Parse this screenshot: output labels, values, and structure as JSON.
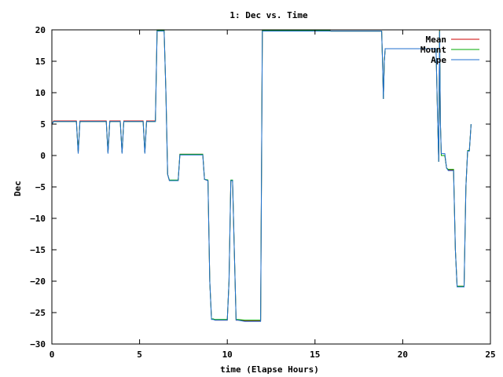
{
  "chart_data": {
    "type": "line",
    "title": "1: Dec vs. Time",
    "xlabel": "time (Elapse Hours)",
    "ylabel": "Dec",
    "xlim": [
      0,
      25
    ],
    "ylim": [
      -30,
      20
    ],
    "xticks": [
      0,
      5,
      10,
      15,
      20,
      25
    ],
    "yticks": [
      -30,
      -25,
      -20,
      -15,
      -10,
      -5,
      0,
      5,
      10,
      15,
      20
    ],
    "grid": false,
    "legend_position": "top-right",
    "series": [
      {
        "name": "Mean",
        "color": "#cc0000",
        "x": [
          0,
          0.1,
          0.2,
          1.4,
          1.5,
          1.6,
          3.1,
          3.2,
          3.3,
          3.9,
          4.0,
          4.1,
          5.2,
          5.3,
          5.4,
          5.9,
          6.0,
          6.4,
          6.5,
          6.6,
          6.7,
          6.8,
          7.2,
          7.3,
          8.6,
          8.7,
          8.9,
          9.0,
          9.1,
          9.2,
          9.3,
          10.0,
          10.1,
          10.2,
          10.3,
          10.4,
          10.5,
          10.6,
          11.0,
          11.1,
          11.9,
          12.0,
          15.8,
          15.9,
          18.8,
          18.85,
          18.9,
          18.95,
          19.0,
          19.1,
          19.2,
          21.9,
          22.0,
          22.05,
          22.1,
          22.15,
          22.2,
          22.4,
          22.5,
          22.6,
          22.9,
          23.0,
          23.1,
          23.2,
          23.4,
          23.5,
          23.6,
          23.7,
          23.8,
          23.9
        ],
        "y": [
          5.0,
          5.5,
          5.5,
          5.5,
          0.5,
          5.5,
          5.5,
          0.5,
          5.5,
          5.5,
          0.5,
          5.5,
          5.5,
          0.5,
          5.5,
          5.5,
          20.0,
          20.0,
          10.0,
          -3.0,
          -4.0,
          -4.0,
          -4.0,
          0.2,
          0.2,
          -3.8,
          -4.0,
          -20.0,
          -26.0,
          -26.0,
          -26.2,
          -26.2,
          -20.0,
          -4.0,
          -4.0,
          -15.0,
          -26.2,
          -26.2,
          -26.3,
          -26.3,
          -26.3,
          20.0,
          20.0,
          19.8,
          19.8,
          15.0,
          9.0,
          15.0,
          17.0,
          17.0,
          17.0,
          17.0,
          5.0,
          -1.0,
          20.0,
          5.0,
          0.0,
          0.0,
          -2.0,
          -2.3,
          -2.3,
          -15.0,
          -20.8,
          -20.8,
          -20.8,
          -20.8,
          -5.0,
          0.8,
          0.8,
          5.0
        ]
      },
      {
        "name": "Mount",
        "color": "#00aa00",
        "x": [
          0,
          0.1,
          0.2,
          1.4,
          1.5,
          1.6,
          3.1,
          3.2,
          3.3,
          3.9,
          4.0,
          4.1,
          5.2,
          5.3,
          5.4,
          5.9,
          6.0,
          6.4,
          6.5,
          6.6,
          6.7,
          6.8,
          7.2,
          7.3,
          8.6,
          8.7,
          8.9,
          9.0,
          9.1,
          9.2,
          9.3,
          10.0,
          10.1,
          10.2,
          10.3,
          10.4,
          10.5,
          10.6,
          11.0,
          11.1,
          11.9,
          12.0,
          15.8,
          15.9,
          18.8,
          18.85,
          18.9,
          18.95,
          19.0,
          19.1,
          19.2,
          21.9,
          22.0,
          22.05,
          22.1,
          22.15,
          22.2,
          22.4,
          22.5,
          22.6,
          22.9,
          23.0,
          23.1,
          23.2,
          23.4,
          23.5,
          23.6,
          23.7,
          23.8,
          23.9
        ],
        "y": [
          5.0,
          5.4,
          5.4,
          5.4,
          0.5,
          5.4,
          5.4,
          0.5,
          5.4,
          5.4,
          0.5,
          5.4,
          5.4,
          0.5,
          5.4,
          5.4,
          19.9,
          19.9,
          10.0,
          -3.0,
          -3.9,
          -3.9,
          -3.9,
          0.2,
          0.2,
          -3.8,
          -3.9,
          -20.0,
          -26.0,
          -26.0,
          -26.1,
          -26.1,
          -20.0,
          -3.9,
          -3.9,
          -15.0,
          -26.1,
          -26.1,
          -26.2,
          -26.2,
          -26.2,
          19.9,
          19.9,
          19.8,
          19.8,
          15.0,
          9.0,
          15.0,
          17.0,
          17.0,
          17.0,
          17.0,
          5.0,
          -1.0,
          19.9,
          5.0,
          0.0,
          0.0,
          -2.0,
          -2.2,
          -2.2,
          -15.0,
          -20.8,
          -20.8,
          -20.8,
          -20.8,
          -5.0,
          0.8,
          0.8,
          5.0
        ]
      },
      {
        "name": "Ape",
        "color": "#1f6fcf",
        "x": [
          0,
          0.1,
          0.2,
          1.4,
          1.5,
          1.6,
          3.1,
          3.2,
          3.3,
          3.9,
          4.0,
          4.1,
          5.2,
          5.3,
          5.4,
          5.9,
          6.0,
          6.4,
          6.5,
          6.6,
          6.7,
          6.8,
          7.2,
          7.3,
          8.6,
          8.7,
          8.9,
          9.0,
          9.1,
          9.2,
          9.3,
          10.0,
          10.1,
          10.2,
          10.3,
          10.4,
          10.5,
          10.6,
          11.0,
          11.1,
          11.9,
          12.0,
          15.8,
          15.9,
          18.8,
          18.85,
          18.9,
          18.95,
          19.0,
          19.1,
          19.2,
          21.9,
          22.0,
          22.05,
          22.1,
          22.15,
          22.2,
          22.4,
          22.5,
          22.6,
          22.9,
          23.0,
          23.1,
          23.2,
          23.4,
          23.5,
          23.6,
          23.7,
          23.8,
          23.9
        ],
        "y": [
          5.0,
          5.4,
          5.4,
          5.4,
          0.3,
          5.4,
          5.4,
          0.3,
          5.4,
          5.4,
          0.3,
          5.4,
          5.4,
          0.3,
          5.4,
          5.4,
          19.8,
          19.8,
          10.0,
          -3.0,
          -4.0,
          -4.0,
          -4.0,
          0.1,
          0.1,
          -3.8,
          -4.0,
          -20.0,
          -26.1,
          -26.1,
          -26.2,
          -26.2,
          -20.0,
          -4.0,
          -4.0,
          -15.0,
          -26.2,
          -26.2,
          -26.4,
          -26.4,
          -26.4,
          19.8,
          19.8,
          19.8,
          19.8,
          15.0,
          9.0,
          15.0,
          17.0,
          17.0,
          17.0,
          17.0,
          5.0,
          -1.0,
          19.8,
          5.0,
          0.3,
          0.3,
          -2.0,
          -2.4,
          -2.4,
          -15.0,
          -20.9,
          -20.9,
          -20.9,
          -20.9,
          -5.0,
          0.7,
          0.7,
          5.0
        ]
      }
    ]
  }
}
